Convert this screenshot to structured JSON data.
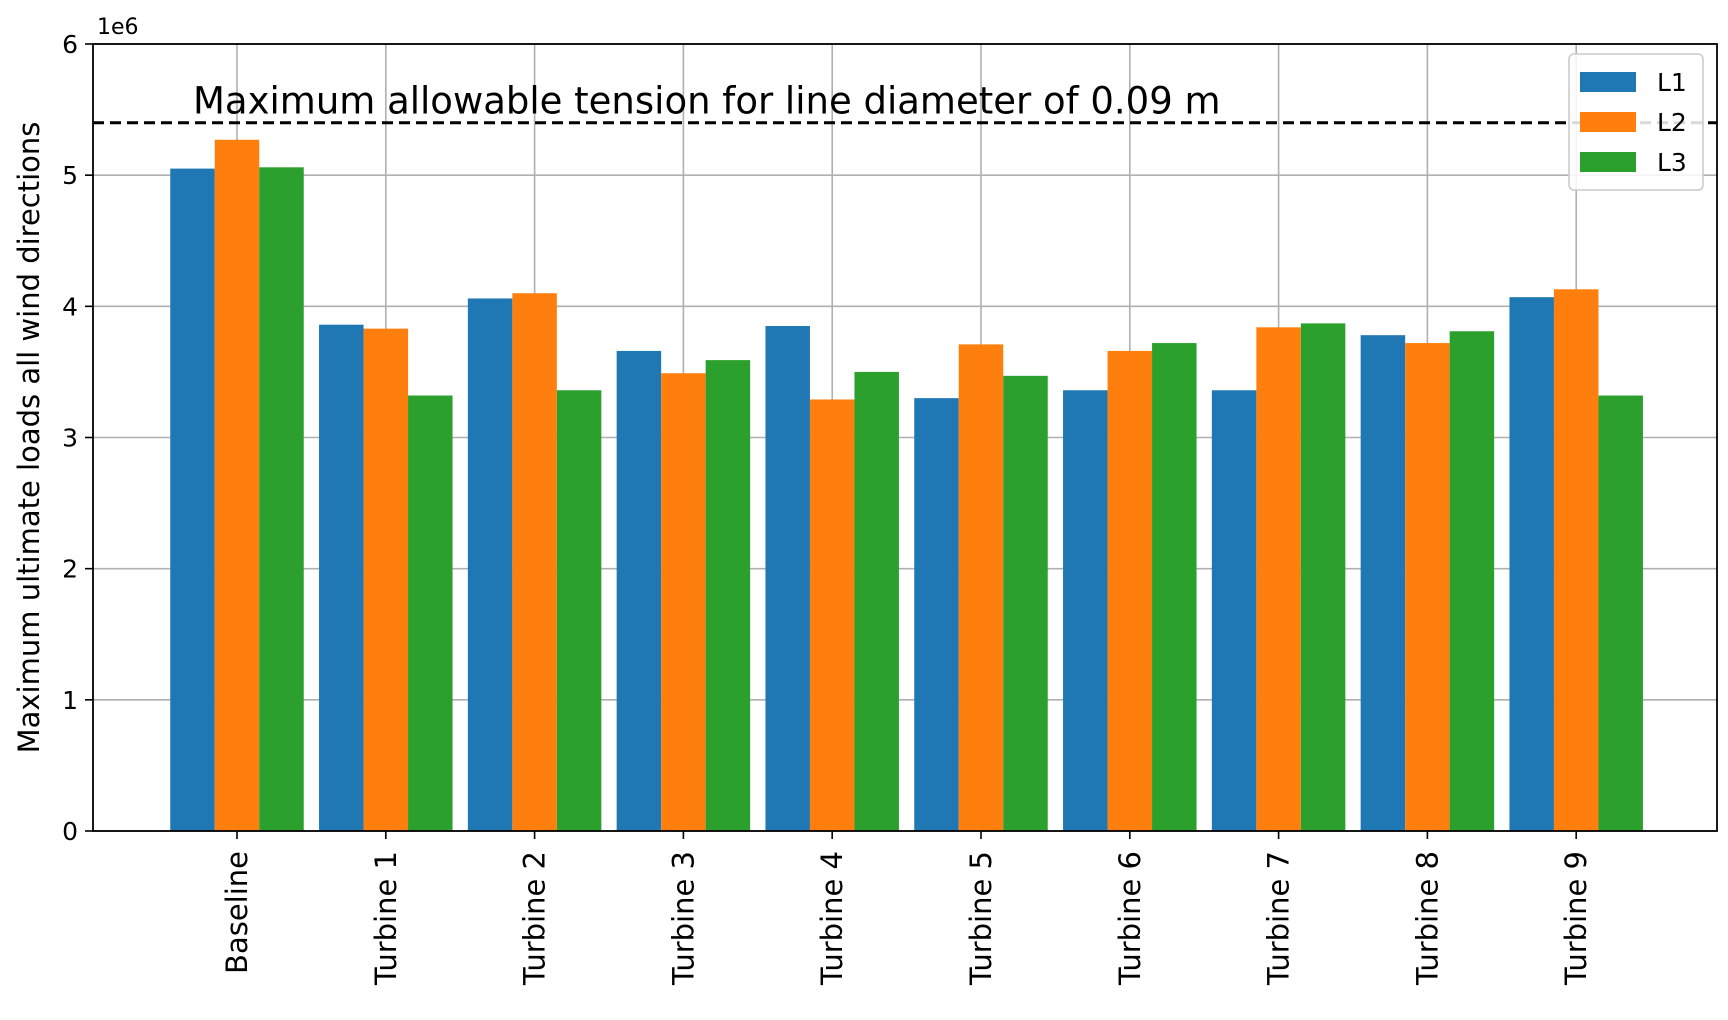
{
  "chart_data": {
    "type": "bar",
    "categories": [
      "Baseline",
      "Turbine 1",
      "Turbine 2",
      "Turbine 3",
      "Turbine 4",
      "Turbine 5",
      "Turbine 6",
      "Turbine 7",
      "Turbine 8",
      "Turbine 9"
    ],
    "series": [
      {
        "name": "L1",
        "color": "#1f77b4",
        "values": [
          5050000,
          3860000,
          4060000,
          3660000,
          3850000,
          3300000,
          3360000,
          3360000,
          3780000,
          4070000
        ]
      },
      {
        "name": "L2",
        "color": "#ff7f0e",
        "values": [
          5270000,
          3830000,
          4100000,
          3490000,
          3290000,
          3710000,
          3660000,
          3840000,
          3720000,
          4130000
        ]
      },
      {
        "name": "L3",
        "color": "#2ca02c",
        "values": [
          5060000,
          3320000,
          3360000,
          3590000,
          3500000,
          3470000,
          3720000,
          3870000,
          3810000,
          3320000
        ]
      }
    ],
    "ylabel": "Maximum ultimate loads all wind directions",
    "xlabel": "",
    "ylim": [
      0,
      6000000
    ],
    "yticks": [
      0,
      1000000,
      2000000,
      3000000,
      4000000,
      5000000,
      6000000
    ],
    "ytick_labels": [
      "0",
      "1",
      "2",
      "3",
      "4",
      "5",
      "6"
    ],
    "y_offset_label": "1e6",
    "reference_line": {
      "value": 5400000,
      "style": "dashed",
      "color": "#000000"
    },
    "annotation": "Maximum allowable tension for line diameter of 0.09 m",
    "grid": true,
    "legend_position": "top-right"
  }
}
